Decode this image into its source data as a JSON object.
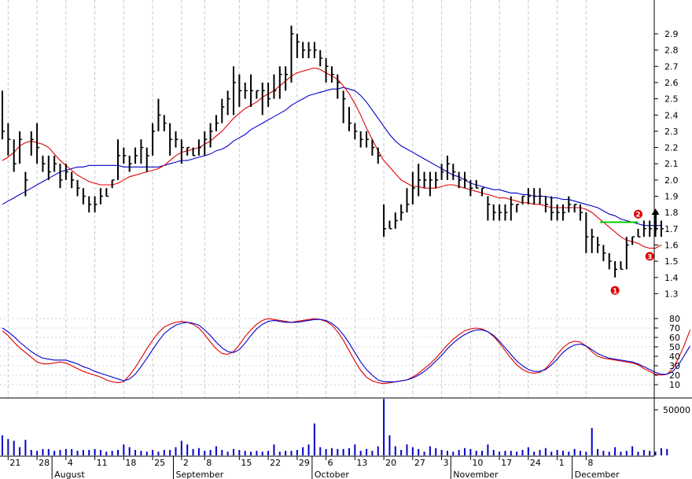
{
  "chart_data": [
    {
      "type": "ohlc",
      "panel": "price",
      "yticks": [
        "1.3",
        "1.4",
        "1.5",
        "1.6",
        "1.7",
        "1.8",
        "1.9",
        "2.0",
        "2.1",
        "2.2",
        "2.3",
        "2.4",
        "2.5",
        "2.6",
        "2.7",
        "2.8",
        "2.9"
      ],
      "ylim": [
        1.22,
        3.0
      ],
      "grid": true,
      "colors": {
        "bars": "#000000",
        "ma_fast": "#e00000",
        "ma_slow": "#0000cc",
        "resistance": "#00cc00",
        "markers": "#e00000",
        "arrow": "#000000"
      },
      "ohlc": [
        [
          2.55,
          2.25,
          2.3
        ],
        [
          2.35,
          2.15,
          2.25
        ],
        [
          2.25,
          2.05,
          2.1
        ],
        [
          2.3,
          2.1,
          2.25
        ],
        [
          2.05,
          1.9,
          2.0
        ],
        [
          2.3,
          2.15,
          2.25
        ],
        [
          2.35,
          2.1,
          2.2
        ],
        [
          2.15,
          2.05,
          2.1
        ],
        [
          2.15,
          2.0,
          2.05
        ],
        [
          2.15,
          2.05,
          2.1
        ],
        [
          2.1,
          1.95,
          2.0
        ],
        [
          2.1,
          2.0,
          2.05
        ],
        [
          2.05,
          1.95,
          2.0
        ],
        [
          2.0,
          1.9,
          1.95
        ],
        [
          1.95,
          1.85,
          1.9
        ],
        [
          1.9,
          1.8,
          1.85
        ],
        [
          1.9,
          1.8,
          1.85
        ],
        [
          1.95,
          1.85,
          1.9
        ],
        [
          1.95,
          1.9,
          1.9
        ],
        [
          2.0,
          1.95,
          2.0
        ],
        [
          2.25,
          2.0,
          2.15
        ],
        [
          2.2,
          2.1,
          2.15
        ],
        [
          2.15,
          2.05,
          2.1
        ],
        [
          2.2,
          2.1,
          2.15
        ],
        [
          2.25,
          2.1,
          2.2
        ],
        [
          2.2,
          2.05,
          2.15
        ],
        [
          2.35,
          2.15,
          2.3
        ],
        [
          2.5,
          2.3,
          2.4
        ],
        [
          2.4,
          2.3,
          2.35
        ],
        [
          2.35,
          2.15,
          2.25
        ],
        [
          2.3,
          2.2,
          2.25
        ],
        [
          2.25,
          2.1,
          2.2
        ],
        [
          2.2,
          2.15,
          2.2
        ],
        [
          2.2,
          2.15,
          2.15
        ],
        [
          2.25,
          2.15,
          2.2
        ],
        [
          2.3,
          2.15,
          2.25
        ],
        [
          2.35,
          2.2,
          2.3
        ],
        [
          2.4,
          2.3,
          2.35
        ],
        [
          2.5,
          2.35,
          2.45
        ],
        [
          2.55,
          2.4,
          2.5
        ],
        [
          2.7,
          2.4,
          2.6
        ],
        [
          2.65,
          2.45,
          2.55
        ],
        [
          2.6,
          2.5,
          2.55
        ],
        [
          2.65,
          2.45,
          2.55
        ],
        [
          2.55,
          2.5,
          2.55
        ],
        [
          2.6,
          2.4,
          2.55
        ],
        [
          2.6,
          2.45,
          2.5
        ],
        [
          2.65,
          2.5,
          2.55
        ],
        [
          2.7,
          2.5,
          2.65
        ],
        [
          2.7,
          2.55,
          2.65
        ],
        [
          2.95,
          2.6,
          2.9
        ],
        [
          2.9,
          2.75,
          2.85
        ],
        [
          2.85,
          2.75,
          2.8
        ],
        [
          2.85,
          2.75,
          2.8
        ],
        [
          2.85,
          2.75,
          2.8
        ],
        [
          2.8,
          2.7,
          2.75
        ],
        [
          2.75,
          2.6,
          2.7
        ],
        [
          2.7,
          2.6,
          2.65
        ],
        [
          2.65,
          2.5,
          2.6
        ],
        [
          2.55,
          2.35,
          2.5
        ],
        [
          2.45,
          2.3,
          2.35
        ],
        [
          2.35,
          2.25,
          2.3
        ],
        [
          2.3,
          2.2,
          2.25
        ],
        [
          2.3,
          2.2,
          2.25
        ],
        [
          2.25,
          2.15,
          2.2
        ],
        [
          2.2,
          2.1,
          2.15
        ],
        [
          1.85,
          1.65,
          1.7
        ],
        [
          1.75,
          1.7,
          1.7
        ],
        [
          1.8,
          1.7,
          1.75
        ],
        [
          1.85,
          1.75,
          1.8
        ],
        [
          1.95,
          1.8,
          1.85
        ],
        [
          2.05,
          1.85,
          1.95
        ],
        [
          2.1,
          1.9,
          2.0
        ],
        [
          2.05,
          1.95,
          2.0
        ],
        [
          2.05,
          1.9,
          2.0
        ],
        [
          2.05,
          1.95,
          2.0
        ],
        [
          2.1,
          2.0,
          2.05
        ],
        [
          2.15,
          2.0,
          2.1
        ],
        [
          2.1,
          2.0,
          2.05
        ],
        [
          2.05,
          1.95,
          2.0
        ],
        [
          2.05,
          1.95,
          2.0
        ],
        [
          2.0,
          1.9,
          1.95
        ],
        [
          2.0,
          1.95,
          1.95
        ],
        [
          1.95,
          1.9,
          1.95
        ],
        [
          1.9,
          1.75,
          1.85
        ],
        [
          1.85,
          1.75,
          1.8
        ],
        [
          1.85,
          1.75,
          1.8
        ],
        [
          1.85,
          1.75,
          1.8
        ],
        [
          1.9,
          1.75,
          1.85
        ],
        [
          1.85,
          1.8,
          1.85
        ],
        [
          1.9,
          1.85,
          1.9
        ],
        [
          1.95,
          1.85,
          1.9
        ],
        [
          1.95,
          1.85,
          1.9
        ],
        [
          1.95,
          1.85,
          1.9
        ],
        [
          1.9,
          1.8,
          1.85
        ],
        [
          1.9,
          1.75,
          1.8
        ],
        [
          1.85,
          1.75,
          1.8
        ],
        [
          1.85,
          1.75,
          1.8
        ],
        [
          1.9,
          1.8,
          1.85
        ],
        [
          1.85,
          1.8,
          1.85
        ],
        [
          1.85,
          1.75,
          1.8
        ],
        [
          1.8,
          1.55,
          1.65
        ],
        [
          1.7,
          1.55,
          1.65
        ],
        [
          1.65,
          1.55,
          1.6
        ],
        [
          1.6,
          1.5,
          1.55
        ],
        [
          1.55,
          1.45,
          1.5
        ],
        [
          1.5,
          1.4,
          1.45
        ],
        [
          1.5,
          1.45,
          1.45
        ],
        [
          1.65,
          1.45,
          1.6
        ],
        [
          1.65,
          1.6,
          1.65
        ],
        [
          1.7,
          1.65,
          1.65
        ],
        [
          1.75,
          1.65,
          1.7
        ],
        [
          1.75,
          1.65,
          1.7
        ],
        [
          1.7,
          1.65,
          1.7
        ],
        [
          1.75,
          1.65,
          1.7
        ]
      ],
      "ma_fast": [
        2.12,
        2.14,
        2.17,
        2.21,
        2.23,
        2.24,
        2.23,
        2.22,
        2.2,
        2.16,
        2.12,
        2.09,
        2.06,
        2.03,
        2.01,
        1.99,
        1.98,
        1.97,
        1.97,
        1.97,
        1.98,
        2.0,
        2.02,
        2.03,
        2.04,
        2.05,
        2.06,
        2.07,
        2.09,
        2.12,
        2.15,
        2.17,
        2.18,
        2.19,
        2.2,
        2.22,
        2.24,
        2.27,
        2.3,
        2.34,
        2.38,
        2.41,
        2.44,
        2.46,
        2.48,
        2.51,
        2.53,
        2.55,
        2.58,
        2.61,
        2.64,
        2.66,
        2.67,
        2.68,
        2.69,
        2.68,
        2.66,
        2.64,
        2.62,
        2.58,
        2.53,
        2.47,
        2.4,
        2.32,
        2.25,
        2.18,
        2.12,
        2.08,
        2.04,
        2.0,
        1.98,
        1.96,
        1.96,
        1.95,
        1.95,
        1.95,
        1.96,
        1.97,
        1.97,
        1.96,
        1.95,
        1.94,
        1.93,
        1.92,
        1.91,
        1.9,
        1.89,
        1.89,
        1.88,
        1.87,
        1.86,
        1.86,
        1.85,
        1.85,
        1.84,
        1.83,
        1.83,
        1.83,
        1.83,
        1.83,
        1.83,
        1.82,
        1.8,
        1.77,
        1.74,
        1.71,
        1.68,
        1.65,
        1.63,
        1.62,
        1.61,
        1.59,
        1.58,
        1.58,
        1.6
      ],
      "ma_slow": [
        1.85,
        1.87,
        1.89,
        1.91,
        1.93,
        1.95,
        1.97,
        1.99,
        2.01,
        2.03,
        2.05,
        2.06,
        2.07,
        2.08,
        2.08,
        2.09,
        2.09,
        2.09,
        2.09,
        2.09,
        2.09,
        2.08,
        2.08,
        2.08,
        2.08,
        2.08,
        2.08,
        2.08,
        2.09,
        2.1,
        2.11,
        2.12,
        2.12,
        2.13,
        2.14,
        2.15,
        2.16,
        2.18,
        2.19,
        2.21,
        2.24,
        2.26,
        2.28,
        2.31,
        2.33,
        2.35,
        2.37,
        2.39,
        2.41,
        2.43,
        2.46,
        2.48,
        2.5,
        2.52,
        2.53,
        2.54,
        2.55,
        2.56,
        2.56,
        2.57,
        2.56,
        2.55,
        2.52,
        2.48,
        2.43,
        2.38,
        2.33,
        2.28,
        2.24,
        2.21,
        2.19,
        2.17,
        2.15,
        2.13,
        2.11,
        2.09,
        2.07,
        2.05,
        2.03,
        2.02,
        2.0,
        1.98,
        1.97,
        1.96,
        1.95,
        1.94,
        1.94,
        1.93,
        1.92,
        1.92,
        1.91,
        1.91,
        1.9,
        1.9,
        1.9,
        1.89,
        1.89,
        1.88,
        1.88,
        1.87,
        1.86,
        1.85,
        1.84,
        1.83,
        1.81,
        1.79,
        1.78,
        1.76,
        1.75,
        1.74,
        1.73,
        1.72,
        1.72,
        1.72,
        1.72
      ],
      "resistance_level": 1.74,
      "markers": [
        {
          "label": "1",
          "bar": 106,
          "value": 1.32
        },
        {
          "label": "2",
          "bar": 110,
          "value": 1.79
        },
        {
          "label": "3",
          "bar": 112,
          "value": 1.53
        }
      ],
      "arrow": {
        "bar": 113,
        "from": 1.69,
        "to": 1.81
      }
    },
    {
      "type": "line",
      "panel": "oscillator",
      "yticks": [
        "10",
        "20",
        "30",
        "40",
        "50",
        "60",
        "70",
        "80"
      ],
      "ylim": [
        0,
        90
      ],
      "grid": true,
      "series": [
        {
          "color": "#e00000",
          "values": [
            67,
            62,
            55,
            49,
            44,
            39,
            34,
            32,
            32,
            33,
            34,
            33,
            30,
            27,
            24,
            22,
            20,
            18,
            15,
            13,
            12,
            13,
            20,
            28,
            38,
            48,
            57,
            65,
            71,
            74,
            76,
            77,
            76,
            74,
            70,
            63,
            55,
            48,
            43,
            42,
            45,
            52,
            61,
            68,
            74,
            78,
            80,
            79,
            78,
            77,
            76,
            77,
            78,
            79,
            80,
            79,
            77,
            73,
            66,
            57,
            46,
            35,
            25,
            18,
            14,
            12,
            11,
            12,
            13,
            14,
            15,
            18,
            22,
            27,
            32,
            38,
            45,
            52,
            58,
            63,
            67,
            69,
            70,
            69,
            66,
            61,
            54,
            46,
            38,
            31,
            26,
            23,
            22,
            23,
            27,
            34,
            42,
            49,
            54,
            56,
            55,
            51,
            45,
            40,
            38,
            37,
            36,
            35,
            34,
            33,
            31,
            27,
            24,
            21,
            20,
            21,
            27,
            38,
            52,
            68
          ]
        },
        {
          "color": "#0000cc",
          "values": [
            70,
            66,
            61,
            55,
            50,
            45,
            41,
            38,
            37,
            36,
            36,
            36,
            34,
            32,
            29,
            27,
            24,
            22,
            20,
            18,
            16,
            14,
            16,
            21,
            29,
            38,
            47,
            56,
            64,
            69,
            73,
            75,
            76,
            75,
            73,
            68,
            62,
            55,
            49,
            45,
            44,
            47,
            54,
            62,
            69,
            74,
            77,
            78,
            77,
            76,
            76,
            76,
            77,
            78,
            79,
            79,
            78,
            75,
            70,
            63,
            54,
            44,
            34,
            26,
            20,
            15,
            13,
            13,
            13,
            14,
            15,
            17,
            20,
            24,
            29,
            35,
            41,
            48,
            54,
            59,
            63,
            66,
            68,
            68,
            66,
            62,
            56,
            49,
            42,
            35,
            30,
            26,
            24,
            24,
            26,
            31,
            37,
            44,
            49,
            52,
            53,
            51,
            47,
            43,
            40,
            38,
            37,
            36,
            35,
            34,
            32,
            29,
            26,
            23,
            21,
            21,
            24,
            31,
            41,
            51
          ]
        }
      ]
    },
    {
      "type": "bar",
      "panel": "volume",
      "yticks": [
        "50000"
      ],
      "ylim": [
        0,
        80000
      ],
      "values": [
        22000,
        18000,
        16000,
        9000,
        17000,
        6000,
        5000,
        7000,
        7000,
        5000,
        6000,
        7000,
        7000,
        5000,
        6000,
        6000,
        7000,
        6000,
        4000,
        5000,
        6000,
        12000,
        9000,
        6000,
        5000,
        4000,
        6000,
        4000,
        6000,
        6000,
        9000,
        16000,
        12000,
        7000,
        8000,
        5000,
        6000,
        10000,
        6000,
        4000,
        7000,
        6000,
        5000,
        4000,
        5000,
        4000,
        5000,
        12000,
        4000,
        5000,
        5000,
        6000,
        9000,
        12000,
        35000,
        9000,
        7000,
        8000,
        7000,
        7000,
        8000,
        12000,
        5000,
        7000,
        5000,
        10000,
        62000,
        22000,
        10000,
        6000,
        12000,
        9000,
        7000,
        4000,
        10000,
        8000,
        6000,
        5000,
        4000,
        6000,
        8000,
        7000,
        5000,
        5000,
        12000,
        6000,
        4000,
        5000,
        5000,
        4000,
        6000,
        9000,
        4000,
        6000,
        8000,
        4000,
        6000,
        5000,
        4000,
        7000,
        5000,
        4000,
        30000,
        7000,
        5000,
        4000,
        9000,
        4000,
        5000,
        10000,
        4000,
        6000,
        5000,
        4000,
        8000,
        7000
      ],
      "xticks": [
        {
          "label": "21",
          "bar": 1
        },
        {
          "label": "28",
          "bar": 6
        },
        {
          "label": "4",
          "bar": 11
        },
        {
          "label": "11",
          "bar": 16
        },
        {
          "label": "18",
          "bar": 21
        },
        {
          "label": "25",
          "bar": 26
        },
        {
          "label": "2",
          "bar": 31
        },
        {
          "label": "8",
          "bar": 35
        },
        {
          "label": "15",
          "bar": 41
        },
        {
          "label": "22",
          "bar": 46
        },
        {
          "label": "29",
          "bar": 51
        },
        {
          "label": "6",
          "bar": 56
        },
        {
          "label": "13",
          "bar": 61
        },
        {
          "label": "20",
          "bar": 66
        },
        {
          "label": "27",
          "bar": 71
        },
        {
          "label": "3",
          "bar": 76
        },
        {
          "label": "10",
          "bar": 81
        },
        {
          "label": "17",
          "bar": 86
        },
        {
          "label": "24",
          "bar": 91
        },
        {
          "label": "1",
          "bar": 96
        },
        {
          "label": "8",
          "bar": 101
        }
      ],
      "month_labels": [
        {
          "label": "August",
          "bar": 9
        },
        {
          "label": "September",
          "bar": 30
        },
        {
          "label": "October",
          "bar": 54
        },
        {
          "label": "November",
          "bar": 78
        },
        {
          "label": "December",
          "bar": 99
        }
      ]
    }
  ]
}
